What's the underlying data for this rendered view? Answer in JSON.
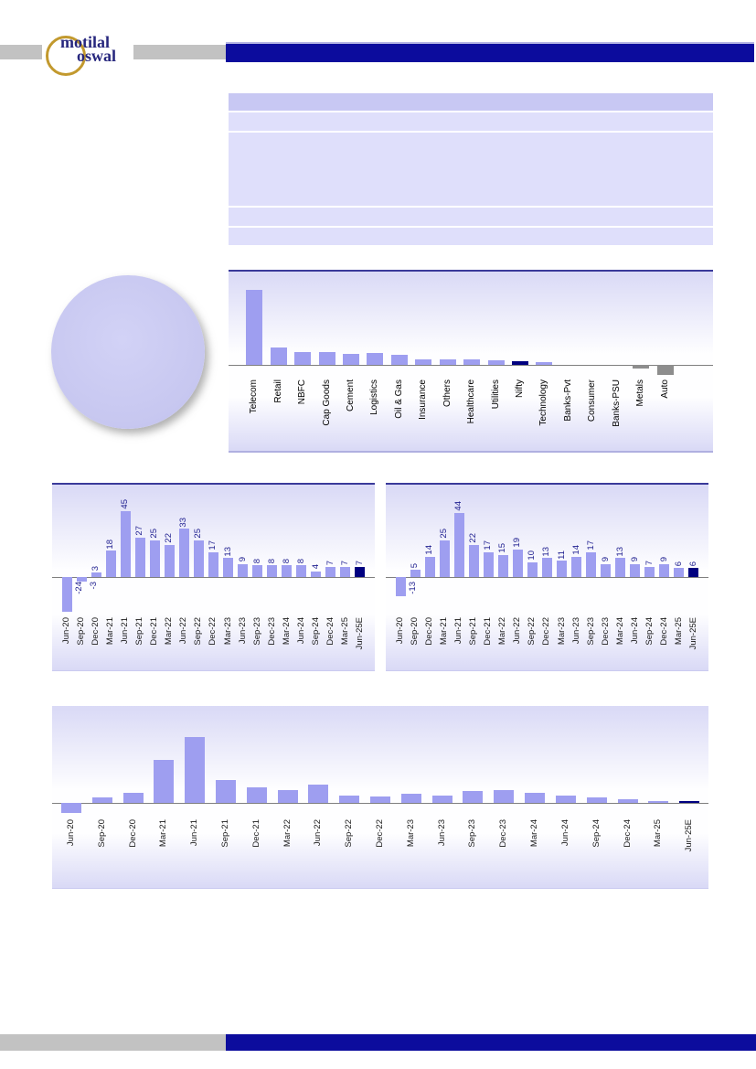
{
  "header": {
    "logo": {
      "line1": "motilal",
      "line2": "oswal"
    }
  },
  "table": {
    "header_fill": "#c8c8f3",
    "row_fill": "#dfdffb",
    "visible_text": ""
  },
  "colors": {
    "bar": "#9e9ef0",
    "bar_highlight": "#000080",
    "bar_negative": "#8d8d8d",
    "axis": "#7f7f7f",
    "value_label": "#1e1e8f",
    "tick_label": "#1a1a1a",
    "chart_top_border": "#3a3a9a",
    "chart_gradient": "#d9d9f6",
    "pie_fill": "#c9c9f2",
    "brand_navy": "#0c0c9d",
    "bar_gray": "#c2c2c2"
  },
  "chart_data": [
    {
      "id": "pie-chart",
      "type": "pie",
      "values": [
        100
      ],
      "labels": [],
      "title": "",
      "legend": false
    },
    {
      "id": "sector-bar-chart",
      "type": "bar",
      "categories": [
        "Telecom",
        "Retail",
        "NBFC",
        "Cap Goods",
        "Cement",
        "Logistics",
        "Oil & Gas",
        "Insurance",
        "Others",
        "Healthcare",
        "Utilities",
        "Nifty",
        "Technology",
        "Banks-Pvt",
        "Consumer",
        "Banks-PSU",
        "Metals",
        "Auto"
      ],
      "values": [
        80,
        19,
        14,
        14,
        12,
        13,
        11,
        6,
        6,
        6,
        5,
        4,
        3,
        0,
        0,
        0,
        -4,
        -11
      ],
      "values_estimated": true,
      "highlight": "Nifty",
      "title": "",
      "data_labels": false,
      "gridlines": false,
      "legend": false
    },
    {
      "id": "quarterly-bar-left",
      "type": "bar",
      "categories": [
        "Jun-20",
        "Sep-20",
        "Dec-20",
        "Mar-21",
        "Jun-21",
        "Sep-21",
        "Dec-21",
        "Mar-22",
        "Jun-22",
        "Sep-22",
        "Dec-22",
        "Mar-23",
        "Jun-23",
        "Sep-23",
        "Dec-23",
        "Mar-24",
        "Jun-24",
        "Sep-24",
        "Dec-24",
        "Mar-25",
        "Jun-25E"
      ],
      "values": [
        -24,
        -3,
        3,
        18,
        45,
        27,
        25,
        22,
        33,
        25,
        17,
        13,
        9,
        8,
        8,
        8,
        8,
        4,
        7,
        7,
        7
      ],
      "highlight": "Jun-25E",
      "title": "",
      "data_labels": true,
      "gridlines": false,
      "legend": false
    },
    {
      "id": "quarterly-bar-right",
      "type": "bar",
      "categories": [
        "Jun-20",
        "Sep-20",
        "Dec-20",
        "Mar-21",
        "Jun-21",
        "Sep-21",
        "Dec-21",
        "Mar-22",
        "Jun-22",
        "Sep-22",
        "Dec-22",
        "Mar-23",
        "Jun-23",
        "Sep-23",
        "Dec-23",
        "Mar-24",
        "Jun-24",
        "Sep-24",
        "Dec-24",
        "Mar-25",
        "Jun-25E"
      ],
      "values": [
        -13,
        5,
        14,
        25,
        44,
        22,
        17,
        15,
        19,
        10,
        13,
        11,
        14,
        17,
        9,
        13,
        9,
        7,
        9,
        6,
        6
      ],
      "highlight": "Jun-25E",
      "title": "",
      "data_labels": true,
      "gridlines": false,
      "legend": false
    },
    {
      "id": "quarterly-bar-bottom",
      "type": "bar",
      "categories": [
        "Jun-20",
        "Sep-20",
        "Dec-20",
        "Mar-21",
        "Jun-21",
        "Sep-21",
        "Dec-21",
        "Mar-22",
        "Jun-22",
        "Sep-22",
        "Dec-22",
        "Mar-23",
        "Jun-23",
        "Sep-23",
        "Dec-23",
        "Mar-24",
        "Jun-24",
        "Sep-24",
        "Dec-24",
        "Mar-25",
        "Jun-25E"
      ],
      "values": [
        -9,
        5,
        9,
        39,
        60,
        21,
        14,
        12,
        17,
        7,
        6,
        8,
        7,
        11,
        12,
        9,
        7,
        5,
        3,
        2,
        2
      ],
      "values_estimated": true,
      "highlight": "Jun-25E",
      "title": "",
      "data_labels": false,
      "gridlines": false,
      "legend": false
    }
  ]
}
